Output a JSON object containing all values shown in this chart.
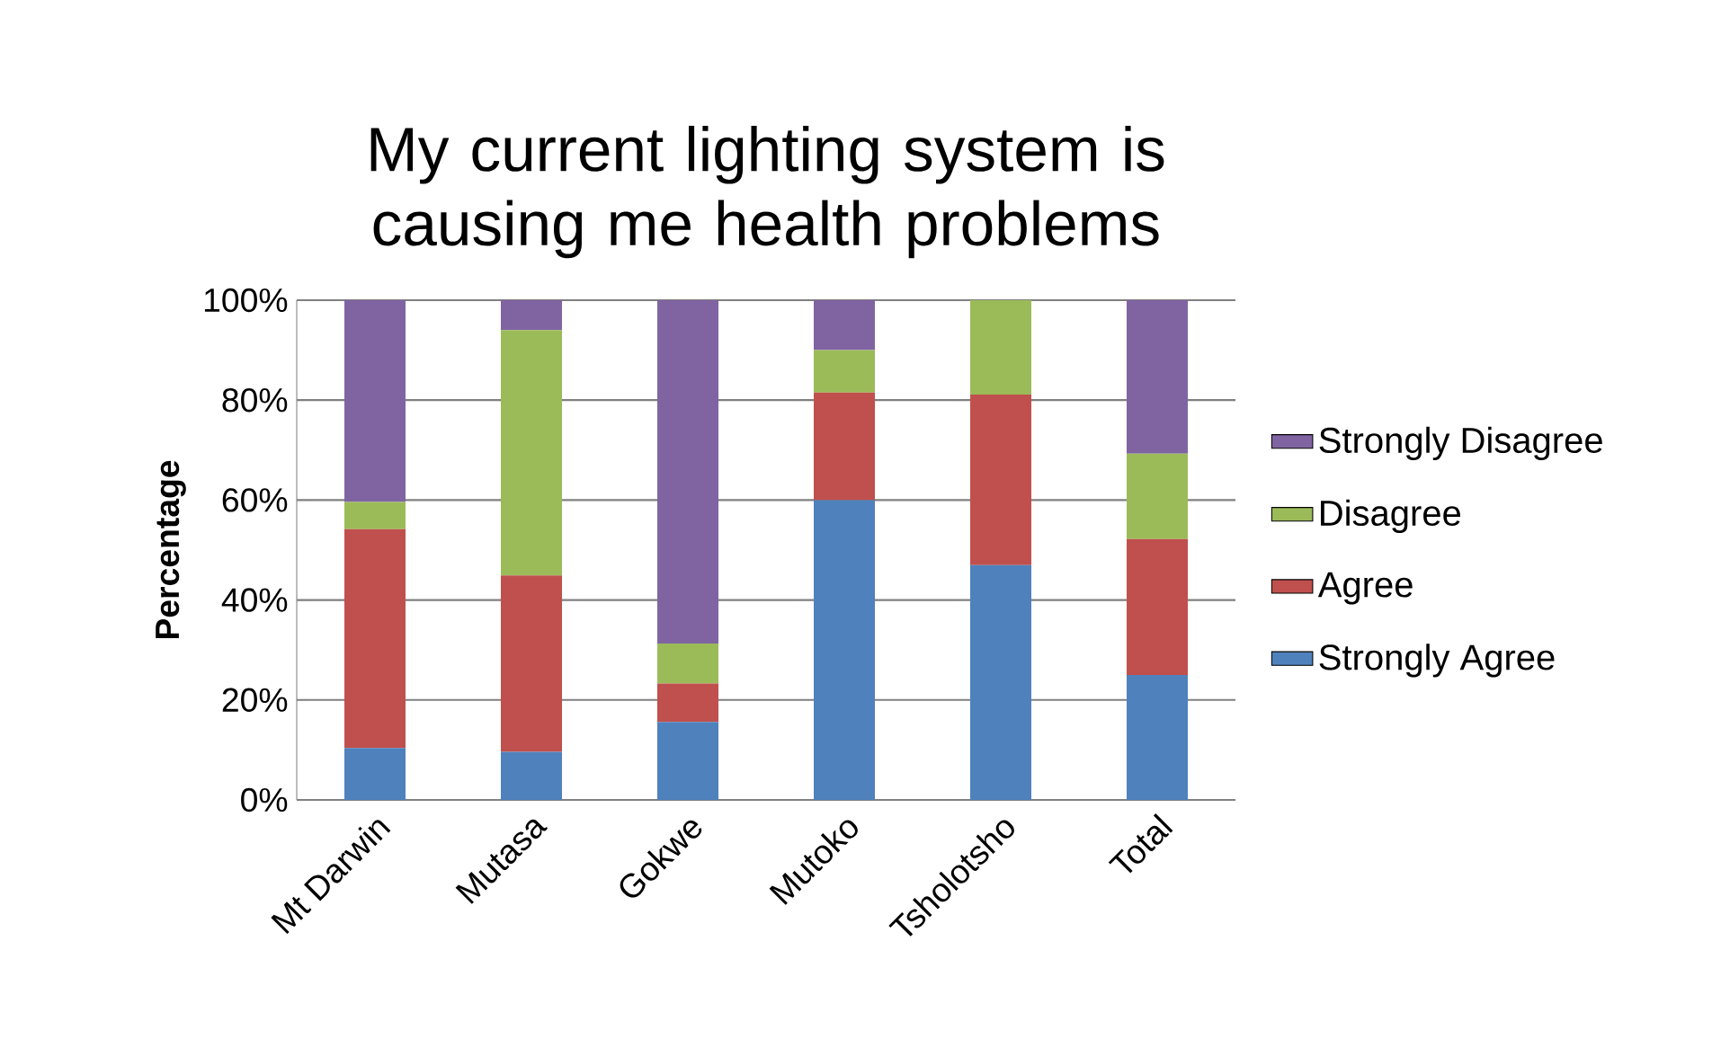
{
  "chart_data": {
    "type": "bar",
    "stacked": true,
    "title": "My current lighting system is causing me health problems",
    "ylabel": "Percentage",
    "categories": [
      "Mt Darwin",
      "Mutasa",
      "Gokwe",
      "Mutoko",
      "Tsholotsho",
      "Total"
    ],
    "series": [
      {
        "name": "Strongly Agree",
        "color": "#4f81bd",
        "values": [
          10.4,
          9.6,
          15.6,
          60.0,
          47.0,
          25.0
        ]
      },
      {
        "name": "Agree",
        "color": "#c0504d",
        "values": [
          43.8,
          35.3,
          7.7,
          21.5,
          34.1,
          27.2
        ]
      },
      {
        "name": "Disagree",
        "color": "#9bbb59",
        "values": [
          5.4,
          49.1,
          8.0,
          8.5,
          18.9,
          17.1
        ]
      },
      {
        "name": "Strongly Disagree",
        "color": "#8064a2",
        "values": [
          40.4,
          6.0,
          68.7,
          10.0,
          0,
          30.7
        ]
      }
    ],
    "ylim": [
      0,
      100
    ],
    "yticks": [
      {
        "value": 0,
        "label": "0%"
      },
      {
        "value": 20,
        "label": "20%"
      },
      {
        "value": 40,
        "label": "40%"
      },
      {
        "value": 60,
        "label": "60%"
      },
      {
        "value": 80,
        "label": "80%"
      },
      {
        "value": 100,
        "label": "100%"
      }
    ],
    "grid": "y",
    "legend": "right"
  }
}
